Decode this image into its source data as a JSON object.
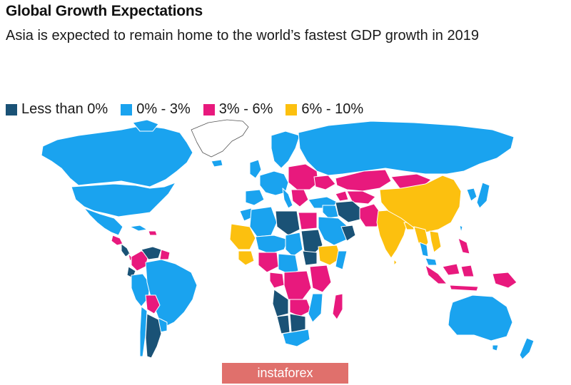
{
  "header": {
    "title": "Global Growth Expectations",
    "subtitle": "Asia is expected to remain home to the world’s fastest GDP growth in 2019"
  },
  "legend": [
    {
      "label": "Less than 0%",
      "color": "#1a5276"
    },
    {
      "label": "0% - 3%",
      "color": "#1aa3ef"
    },
    {
      "label": "3% - 6%",
      "color": "#e8197d"
    },
    {
      "label": "6% - 10%",
      "color": "#fcc00f"
    }
  ],
  "map_colors": {
    "land_default": "#1aa3ef",
    "greenland": "#ffffff",
    "border": "#ffffff",
    "outline": "#2a2a2a"
  },
  "watermark": "instaforex"
}
